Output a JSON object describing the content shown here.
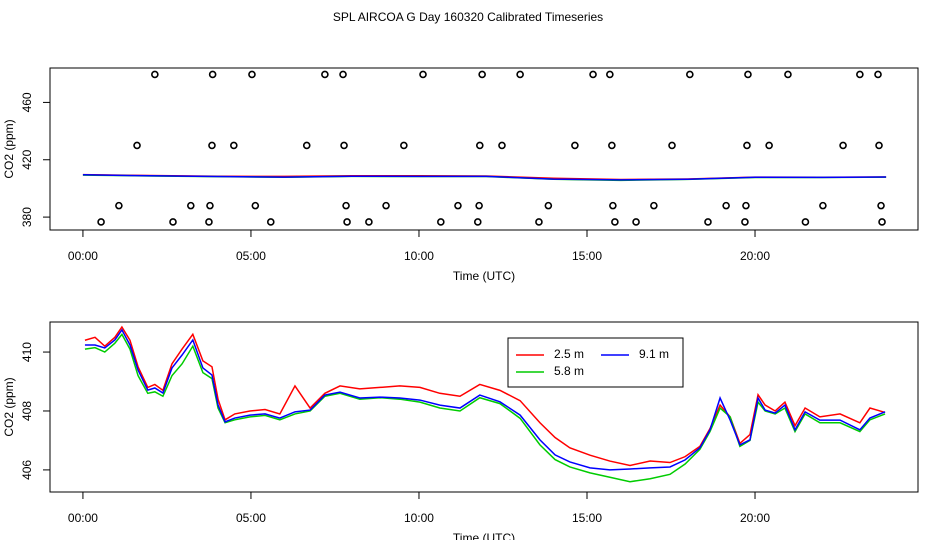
{
  "title": "SPL AIRCOA G  Day 160320  Calibrated Timeseries",
  "chart_data": [
    {
      "type": "line",
      "xlabel": "Time (UTC)",
      "ylabel": "CO2 (ppm)",
      "xlim": [
        -0.98,
        24.85
      ],
      "ylim": [
        371,
        484
      ],
      "xticks": [
        {
          "value": 0,
          "label": "00:00"
        },
        {
          "value": 5,
          "label": "05:00"
        },
        {
          "value": 10,
          "label": "10:00"
        },
        {
          "value": 15,
          "label": "15:00"
        },
        {
          "value": 20,
          "label": "20:00"
        }
      ],
      "yticks": [
        380,
        420,
        460
      ],
      "series": [
        {
          "type": "scatter",
          "color": "#000000",
          "x": [
            2.14,
            3.86,
            5.03,
            7.2,
            7.74,
            10.12,
            11.88,
            13.01,
            15.18,
            15.68,
            18.06,
            19.79,
            20.98,
            23.12,
            23.66,
            1.61,
            3.84,
            4.49,
            6.66,
            7.77,
            9.55,
            11.81,
            12.47,
            14.64,
            15.74,
            17.53,
            19.76,
            20.42,
            22.62,
            23.69,
            1.07,
            3.21,
            3.78,
            5.13,
            7.83,
            9.02,
            11.16,
            11.79,
            13.85,
            15.77,
            16.99,
            19.14,
            19.73,
            22.02,
            23.75,
            0.54,
            2.68,
            3.75,
            5.59,
            7.86,
            8.51,
            10.65,
            11.75,
            13.57,
            15.83,
            16.46,
            18.6,
            19.7,
            21.5,
            23.78
          ],
          "values": [
            479.5,
            479.5,
            479.5,
            479.5,
            479.5,
            479.5,
            479.5,
            479.5,
            479.5,
            479.5,
            479.5,
            479.5,
            479.5,
            479.5,
            479.5,
            430,
            430,
            430,
            430,
            430,
            430,
            430,
            430,
            430,
            430,
            430,
            430,
            430,
            430,
            430,
            388,
            388,
            388,
            388,
            388,
            388,
            388,
            388,
            388,
            388,
            388,
            388,
            388,
            388,
            388,
            376.6,
            376.6,
            376.6,
            376.6,
            376.6,
            376.6,
            376.6,
            376.6,
            376.6,
            376.6,
            376.6,
            376.6,
            376.6,
            376.6,
            376.6
          ]
        },
        {
          "type": "line",
          "color": "#ff0000",
          "x": [
            0,
            2,
            4,
            6,
            8,
            10,
            12,
            14,
            16,
            18,
            20,
            22,
            23.9
          ],
          "values": [
            409.6,
            409.0,
            408.5,
            408.4,
            408.8,
            408.8,
            408.7,
            407.1,
            406.2,
            406.6,
            407.9,
            407.8,
            408.0
          ]
        },
        {
          "type": "line",
          "color": "#00cc00",
          "x": [
            0,
            2,
            4,
            6,
            8,
            10,
            12,
            14,
            16,
            18,
            20,
            22,
            23.9
          ],
          "values": [
            409.3,
            408.7,
            408.2,
            407.8,
            408.4,
            408.3,
            408.3,
            406.4,
            405.6,
            406.3,
            407.6,
            407.6,
            407.9
          ]
        },
        {
          "type": "line",
          "color": "#0000ff",
          "x": [
            0,
            2,
            4,
            6,
            8,
            10,
            12,
            14,
            16,
            18,
            20,
            22,
            23.9
          ],
          "values": [
            409.5,
            408.8,
            408.3,
            407.9,
            408.5,
            408.4,
            408.4,
            406.5,
            406.0,
            406.4,
            407.8,
            407.7,
            408.0
          ]
        }
      ]
    },
    {
      "type": "line",
      "xlabel": "Time (UTC)",
      "ylabel": "CO2 (ppm)",
      "xlim": [
        -0.98,
        24.85
      ],
      "ylim": [
        405.25,
        411.02
      ],
      "xticks": [
        {
          "value": 0,
          "label": "00:00"
        },
        {
          "value": 5,
          "label": "05:00"
        },
        {
          "value": 10,
          "label": "10:00"
        },
        {
          "value": 15,
          "label": "15:00"
        },
        {
          "value": 20,
          "label": "20:00"
        }
      ],
      "yticks": [
        406,
        408,
        410
      ],
      "legend": "top",
      "x": [
        0.06,
        0.36,
        0.65,
        0.95,
        1.16,
        1.4,
        1.64,
        1.93,
        2.14,
        2.38,
        2.65,
        2.95,
        3.27,
        3.57,
        3.84,
        4.02,
        4.23,
        4.52,
        4.97,
        5.42,
        5.86,
        6.31,
        6.76,
        7.2,
        7.65,
        8.24,
        8.84,
        9.43,
        10.03,
        10.62,
        11.22,
        11.81,
        12.41,
        13.01,
        13.6,
        14.05,
        14.49,
        15.09,
        15.68,
        16.28,
        16.88,
        17.47,
        17.92,
        18.36,
        18.66,
        18.96,
        19.26,
        19.55,
        19.85,
        20.09,
        20.3,
        20.6,
        20.89,
        21.19,
        21.49,
        21.93,
        22.53,
        23.12,
        23.42,
        23.87
      ],
      "series": [
        {
          "name": "2.5 m",
          "type": "line",
          "color": "#ff0000",
          "values": [
            410.4,
            410.5,
            410.2,
            410.5,
            410.85,
            410.4,
            409.5,
            408.8,
            408.9,
            408.7,
            409.6,
            410.1,
            410.6,
            409.7,
            409.5,
            408.4,
            407.7,
            407.9,
            408.0,
            408.05,
            407.9,
            408.85,
            408.1,
            408.6,
            408.85,
            408.75,
            408.8,
            408.85,
            408.8,
            408.6,
            408.5,
            408.9,
            408.7,
            408.35,
            407.6,
            407.1,
            406.75,
            406.5,
            406.3,
            406.15,
            406.3,
            406.25,
            406.45,
            406.8,
            407.4,
            408.2,
            407.8,
            406.9,
            407.2,
            408.55,
            408.2,
            408.0,
            408.3,
            407.5,
            408.1,
            407.8,
            407.9,
            407.6,
            408.1,
            407.95
          ]
        },
        {
          "name": "5.8 m",
          "type": "line",
          "color": "#00cc00",
          "values": [
            410.1,
            410.15,
            410.0,
            410.3,
            410.6,
            410.1,
            409.2,
            408.6,
            408.65,
            408.5,
            409.2,
            409.6,
            410.2,
            409.3,
            409.1,
            408.1,
            407.6,
            407.7,
            407.8,
            407.85,
            407.7,
            407.9,
            408.0,
            408.5,
            408.6,
            408.4,
            408.45,
            408.4,
            408.3,
            408.1,
            408.0,
            408.45,
            408.25,
            407.75,
            406.85,
            406.35,
            406.1,
            405.9,
            405.75,
            405.6,
            405.7,
            405.85,
            406.2,
            406.7,
            407.3,
            408.1,
            407.8,
            406.8,
            407.0,
            408.3,
            408.0,
            407.9,
            408.1,
            407.3,
            407.9,
            407.6,
            407.6,
            407.3,
            407.7,
            407.9
          ]
        },
        {
          "name": "9.1 m",
          "type": "line",
          "color": "#0000ff",
          "values": [
            410.24,
            410.24,
            410.14,
            410.41,
            410.75,
            410.24,
            409.39,
            408.71,
            408.78,
            408.61,
            409.46,
            409.9,
            410.41,
            409.46,
            409.22,
            408.2,
            407.63,
            407.76,
            407.86,
            407.9,
            407.76,
            407.97,
            408.03,
            408.54,
            408.64,
            408.44,
            408.47,
            408.44,
            408.37,
            408.2,
            408.1,
            408.54,
            408.31,
            407.86,
            407.02,
            406.51,
            406.27,
            406.07,
            406.0,
            406.03,
            406.07,
            406.1,
            406.34,
            406.75,
            407.36,
            408.44,
            407.69,
            406.85,
            407.02,
            408.44,
            408.03,
            407.93,
            408.2,
            407.36,
            407.97,
            407.69,
            407.69,
            407.36,
            407.76,
            407.97
          ]
        }
      ]
    }
  ]
}
